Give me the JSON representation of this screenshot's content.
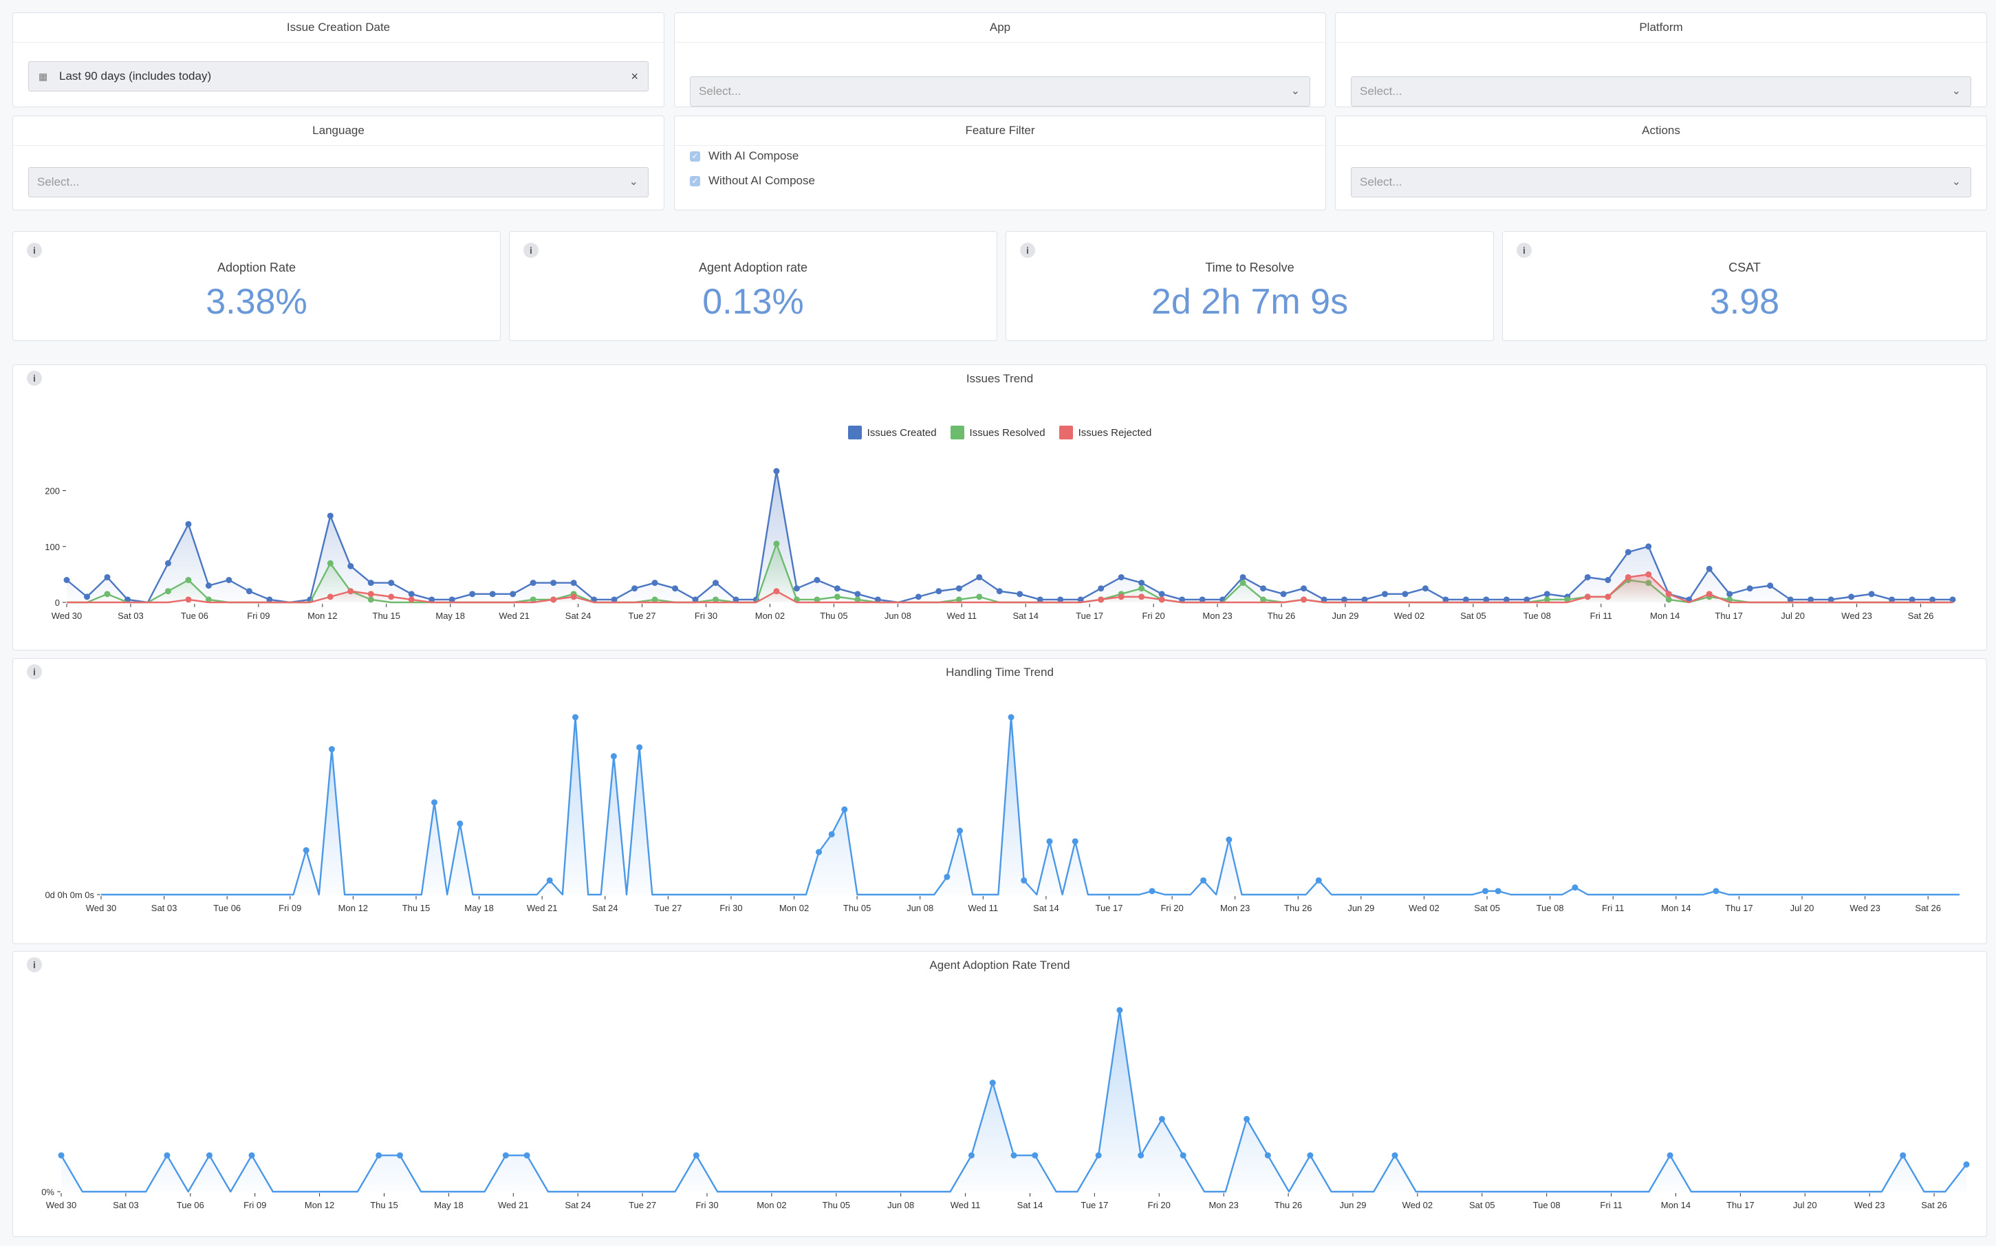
{
  "filters": {
    "issue_creation_date": {
      "title": "Issue Creation Date",
      "value": "Last 90 days (includes today)"
    },
    "app": {
      "title": "App",
      "placeholder": "Select..."
    },
    "platform": {
      "title": "Platform",
      "placeholder": "Select..."
    },
    "language": {
      "title": "Language",
      "placeholder": "Select..."
    },
    "feature_filter": {
      "title": "Feature Filter",
      "options": [
        {
          "label": "With AI Compose",
          "checked": true
        },
        {
          "label": "Without AI Compose",
          "checked": true
        }
      ]
    },
    "actions": {
      "title": "Actions",
      "placeholder": "Select..."
    }
  },
  "kpis": [
    {
      "label": "Adoption Rate",
      "value": "3.38%"
    },
    {
      "label": "Agent Adoption rate",
      "value": "0.13%"
    },
    {
      "label": "Time to Resolve",
      "value": "2d 2h 7m 9s"
    },
    {
      "label": "CSAT",
      "value": "3.98"
    }
  ],
  "colors": {
    "accent": "#6a98d8",
    "created": "#4a76c2",
    "resolved": "#6dbb6d",
    "rejected": "#e86a6a",
    "line": "#4a98e8"
  },
  "icons": {
    "info": "i",
    "calendar": "calendar-icon",
    "clear": "close-icon",
    "dropdown": "chevron-down-icon",
    "checkbox": "checkbox-checked-icon"
  },
  "chart_data": [
    {
      "title": "Issues Trend",
      "type": "line",
      "legend": "top-center",
      "tick_labels": [
        "Wed 30",
        "Sat 03",
        "Tue 06",
        "Fri 09",
        "Mon 12",
        "Thu 15",
        "May 18",
        "Wed 21",
        "Sat 24",
        "Tue 27",
        "Fri 30",
        "Mon 02",
        "Thu 05",
        "Jun 08",
        "Wed 11",
        "Sat 14",
        "Tue 17",
        "Fri 20",
        "Mon 23",
        "Thu 26",
        "Jun 29",
        "Wed 02",
        "Sat 05",
        "Tue 08",
        "Fri 11",
        "Mon 14",
        "Thu 17",
        "Jul 20",
        "Wed 23",
        "Sat 26"
      ],
      "y_ticks": [
        "0",
        "100",
        "200"
      ],
      "ylim": [
        0,
        240
      ],
      "series": [
        {
          "name": "Issues Created",
          "values": [
            40,
            10,
            45,
            5,
            0,
            70,
            140,
            30,
            40,
            20,
            5,
            0,
            5,
            155,
            65,
            35,
            35,
            15,
            5,
            5,
            15,
            15,
            15,
            35,
            35,
            35,
            5,
            5,
            25,
            35,
            25,
            5,
            35,
            5,
            5,
            235,
            25,
            40,
            25,
            15,
            5,
            0,
            10,
            20,
            25,
            45,
            20,
            15,
            5,
            5,
            5,
            25,
            45,
            35,
            15,
            5,
            5,
            5,
            45,
            25,
            15,
            25,
            5,
            5,
            5,
            15,
            15,
            25,
            5,
            5,
            5,
            5,
            5,
            15,
            10,
            45,
            40,
            90,
            100,
            15,
            5,
            60,
            15,
            25,
            30,
            5,
            5,
            5,
            10,
            15,
            5,
            5,
            5,
            5
          ]
        },
        {
          "name": "Issues Resolved",
          "values": [
            0,
            0,
            15,
            0,
            0,
            20,
            40,
            5,
            0,
            0,
            0,
            0,
            0,
            70,
            20,
            5,
            0,
            0,
            0,
            0,
            0,
            0,
            0,
            5,
            5,
            15,
            0,
            0,
            0,
            5,
            0,
            0,
            5,
            0,
            0,
            105,
            5,
            5,
            10,
            5,
            0,
            0,
            0,
            0,
            5,
            10,
            0,
            0,
            0,
            0,
            0,
            5,
            15,
            25,
            5,
            0,
            0,
            0,
            35,
            5,
            0,
            5,
            0,
            0,
            0,
            0,
            0,
            0,
            0,
            0,
            0,
            0,
            0,
            5,
            5,
            10,
            10,
            40,
            35,
            5,
            0,
            10,
            5,
            0,
            0,
            0,
            0,
            0,
            0,
            0,
            0,
            0,
            0,
            0
          ]
        },
        {
          "name": "Issues Rejected",
          "values": [
            0,
            0,
            0,
            0,
            0,
            0,
            5,
            0,
            0,
            0,
            0,
            0,
            0,
            10,
            20,
            15,
            10,
            5,
            0,
            0,
            0,
            0,
            0,
            0,
            5,
            10,
            0,
            0,
            0,
            0,
            0,
            0,
            0,
            0,
            0,
            20,
            0,
            0,
            0,
            0,
            0,
            0,
            0,
            0,
            0,
            0,
            0,
            0,
            0,
            0,
            0,
            5,
            10,
            10,
            5,
            0,
            0,
            0,
            0,
            0,
            0,
            5,
            0,
            0,
            0,
            0,
            0,
            0,
            0,
            0,
            0,
            0,
            0,
            0,
            0,
            10,
            10,
            45,
            50,
            15,
            0,
            15,
            0,
            0,
            0,
            0,
            0,
            0,
            0,
            0,
            0,
            0,
            0,
            0
          ]
        }
      ]
    },
    {
      "title": "Handling Time Trend",
      "type": "area",
      "tick_labels": [
        "Wed 30",
        "Sat 03",
        "Tue 06",
        "Fri 09",
        "Mon 12",
        "Thu 15",
        "May 18",
        "Wed 21",
        "Sat 24",
        "Tue 27",
        "Fri 30",
        "Mon 02",
        "Thu 05",
        "Jun 08",
        "Wed 11",
        "Sat 14",
        "Tue 17",
        "Fri 20",
        "Mon 23",
        "Thu 26",
        "Jun 29",
        "Wed 02",
        "Sat 05",
        "Tue 08",
        "Fri 11",
        "Mon 14",
        "Thu 17",
        "Jul 20",
        "Wed 23",
        "Sat 26"
      ],
      "y_ticks": [
        "0d 0h 0m 0s"
      ],
      "series": [
        {
          "name": "",
          "values": [
            0,
            0,
            0,
            0,
            0,
            0,
            0,
            0,
            0,
            0,
            0,
            0,
            0,
            0,
            0,
            0,
            25,
            0,
            82,
            0,
            0,
            0,
            0,
            0,
            0,
            0,
            52,
            0,
            40,
            0,
            0,
            0,
            0,
            0,
            0,
            8,
            0,
            100,
            0,
            0,
            78,
            0,
            83,
            0,
            0,
            0,
            0,
            0,
            0,
            0,
            0,
            0,
            0,
            0,
            0,
            0,
            24,
            34,
            48,
            0,
            0,
            0,
            0,
            0,
            0,
            0,
            10,
            36,
            0,
            0,
            0,
            100,
            8,
            0,
            30,
            0,
            30,
            0,
            0,
            0,
            0,
            0,
            2,
            0,
            0,
            0,
            8,
            0,
            31,
            0,
            0,
            0,
            0,
            0,
            0,
            8,
            0,
            0,
            0,
            0,
            0,
            0,
            0,
            0,
            0,
            0,
            0,
            0,
            2,
            2,
            0,
            0,
            0,
            0,
            0,
            4,
            0,
            0,
            0,
            0,
            0,
            0,
            0,
            0,
            0,
            0,
            2,
            0,
            0,
            0,
            0,
            0,
            0,
            0,
            0,
            0,
            0,
            0,
            0,
            0,
            0,
            0,
            0,
            0,
            0,
            0
          ]
        }
      ]
    },
    {
      "title": "Agent Adoption Rate Trend",
      "type": "area",
      "tick_labels": [
        "Wed 30",
        "Sat 03",
        "Tue 06",
        "Fri 09",
        "Mon 12",
        "Thu 15",
        "May 18",
        "Wed 21",
        "Sat 24",
        "Tue 27",
        "Fri 30",
        "Mon 02",
        "Thu 05",
        "Jun 08",
        "Wed 11",
        "Sat 14",
        "Tue 17",
        "Fri 20",
        "Mon 23",
        "Thu 26",
        "Jun 29",
        "Wed 02",
        "Sat 05",
        "Tue 08",
        "Fri 11",
        "Mon 14",
        "Thu 17",
        "Jul 20",
        "Wed 23",
        "Sat 26"
      ],
      "y_ticks": [
        "0%"
      ],
      "series": [
        {
          "name": "",
          "values": [
            20,
            0,
            0,
            0,
            0,
            20,
            0,
            20,
            0,
            20,
            0,
            0,
            0,
            0,
            0,
            20,
            20,
            0,
            0,
            0,
            0,
            20,
            20,
            0,
            0,
            0,
            0,
            0,
            0,
            0,
            20,
            0,
            0,
            0,
            0,
            0,
            0,
            0,
            0,
            0,
            0,
            0,
            0,
            20,
            60,
            20,
            20,
            0,
            0,
            20,
            100,
            20,
            40,
            20,
            0,
            0,
            40,
            20,
            0,
            20,
            0,
            0,
            0,
            20,
            0,
            0,
            0,
            0,
            0,
            0,
            0,
            0,
            0,
            0,
            0,
            0,
            20,
            0,
            0,
            0,
            0,
            0,
            0,
            0,
            0,
            0,
            0,
            20,
            0,
            0,
            15
          ]
        }
      ]
    }
  ]
}
